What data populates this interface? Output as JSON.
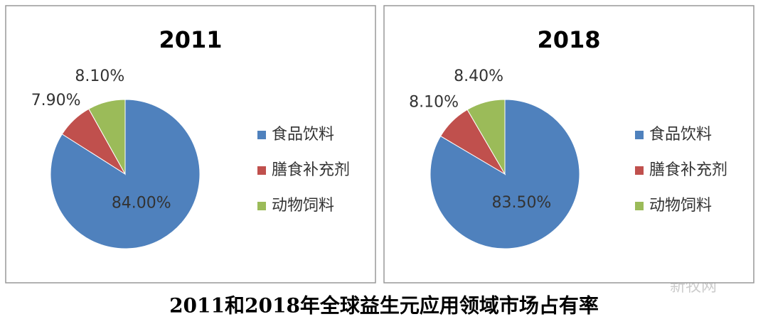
{
  "chart_data": [
    {
      "type": "pie",
      "title": "2011",
      "categories": [
        "食品饮料",
        "膳食补充剂",
        "动物饲料"
      ],
      "values": [
        84.0,
        7.9,
        8.1
      ],
      "value_labels": [
        "84.00%",
        "7.90%",
        "8.10%"
      ],
      "colors": [
        "#4f81bd",
        "#c0504d",
        "#9bbb59"
      ],
      "legend": "right"
    },
    {
      "type": "pie",
      "title": "2018",
      "categories": [
        "食品饮料",
        "膳食补充剂",
        "动物饲料"
      ],
      "values": [
        83.5,
        8.1,
        8.4
      ],
      "value_labels": [
        "83.50%",
        "8.10%",
        "8.40%"
      ],
      "colors": [
        "#4f81bd",
        "#c0504d",
        "#9bbb59"
      ],
      "legend": "right"
    }
  ],
  "caption": "2011和2018年全球益生元应用领域市场占有率",
  "watermark": "新牧网"
}
